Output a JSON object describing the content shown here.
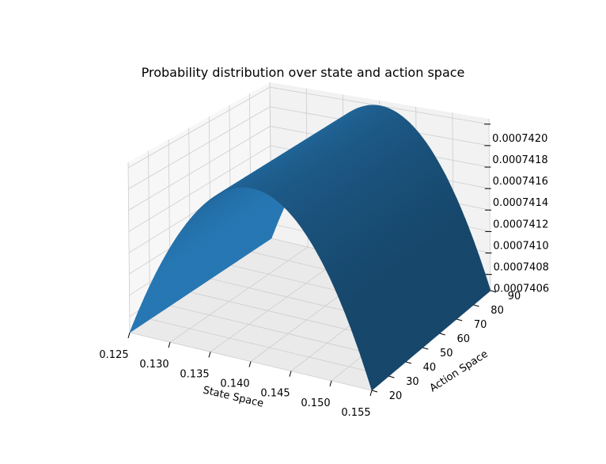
{
  "chart_data": {
    "type": "surface",
    "title": "Probability distribution over state and action space",
    "xlabel": "State Space",
    "ylabel": "Action Space",
    "zlabel": "",
    "x_ticks": [
      "0.125",
      "0.130",
      "0.135",
      "0.140",
      "0.145",
      "0.150",
      "0.155"
    ],
    "y_ticks": [
      "20",
      "30",
      "40",
      "50",
      "60",
      "70",
      "80",
      "90"
    ],
    "z_ticks": [
      "0.0007406",
      "0.0007408",
      "0.0007410",
      "0.0007412",
      "0.0007414",
      "0.0007416",
      "0.0007418",
      "0.0007420"
    ],
    "xlim": [
      0.125,
      0.155
    ],
    "ylim": [
      20,
      90
    ],
    "zlim": [
      0.00074045,
      0.00074205
    ],
    "surface": {
      "x_range": [
        0.125,
        0.155
      ],
      "y_range": [
        20,
        90
      ],
      "peak_x": 0.14,
      "peak_z": 0.000742,
      "edge_z": 0.00074045
    },
    "color": "#1f5f8f",
    "grid": true
  }
}
